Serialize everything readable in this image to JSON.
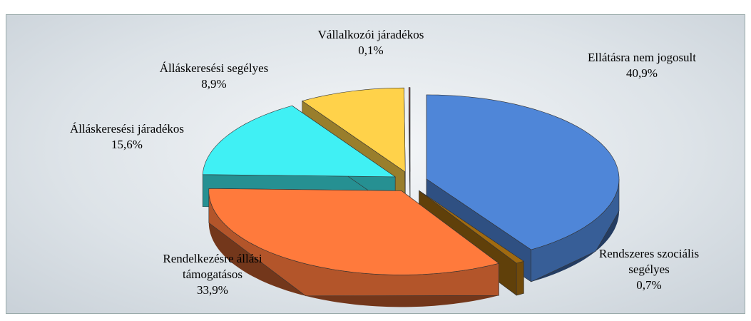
{
  "chart_data": {
    "type": "pie",
    "categories": [
      "Ellátásra nem jogosult",
      "Rendszeres szociális segélyes",
      "Rendelkezésre állási támogatásos",
      "Álláskeresési járadékos",
      "Álláskeresési segélyes",
      "Vállalkozói járadékos"
    ],
    "values": [
      40.9,
      0.7,
      33.9,
      15.6,
      8.9,
      0.1
    ],
    "value_labels": [
      "40,9%",
      "0,7%",
      "33,9%",
      "15,6%",
      "8,9%",
      "0,1%"
    ],
    "colors": [
      "#4f86d8",
      "#a06a10",
      "#ff7a3c",
      "#40f0f4",
      "#ffd24a",
      "#a05050"
    ]
  }
}
